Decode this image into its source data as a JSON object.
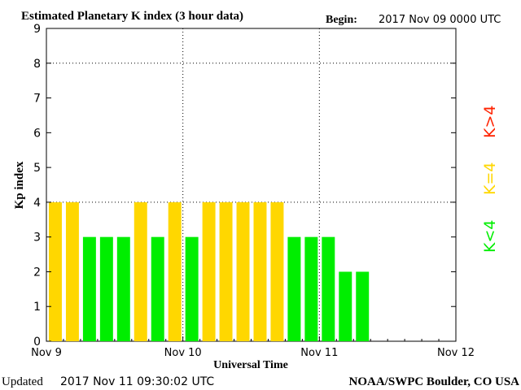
{
  "chart_data": {
    "type": "bar",
    "title": "Estimated Planetary K index (3 hour data)",
    "begin_label": "Begin:",
    "begin_value": "2017 Nov 09 0000 UTC",
    "ylabel": "Kp index",
    "xlabel": "Universal Time",
    "ylim": [
      0,
      9
    ],
    "yticks": [
      "0",
      "1",
      "2",
      "3",
      "4",
      "5",
      "6",
      "7",
      "8",
      "9"
    ],
    "xticks": [
      "Nov 9",
      "Nov 10",
      "Nov 11",
      "Nov 12"
    ],
    "slots": 24,
    "values": [
      4,
      4,
      3,
      3,
      3,
      4,
      3,
      4,
      3,
      4,
      4,
      4,
      4,
      4,
      3,
      3,
      3,
      2,
      2
    ],
    "colors": {
      "below4": "#00ee00",
      "equal4": "#ffd700",
      "above4": "#ff2200"
    },
    "grid": true,
    "legend": {
      "below": "K<4",
      "equal": "K=4",
      "above": "K>4",
      "placement": "right"
    }
  },
  "footer": {
    "updated_label": "Updated",
    "updated_value": "2017 Nov 11 09:30:02 UTC",
    "source": "NOAA/SWPC Boulder, CO USA"
  }
}
